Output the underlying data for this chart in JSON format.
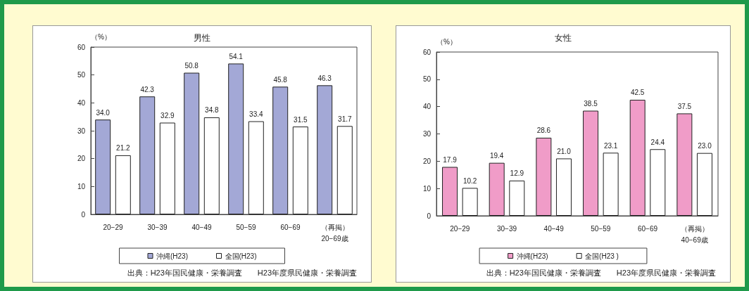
{
  "chart_data": [
    {
      "type": "bar",
      "title": "男性",
      "ylabel": "（%）",
      "categories": [
        "20−29",
        "30−39",
        "40−49",
        "50−59",
        "60−69",
        "（再掲）\n20−69歳"
      ],
      "series": [
        {
          "name": "沖縄(H23)",
          "color": "#a3a8d6",
          "values": [
            34.0,
            42.3,
            50.8,
            54.1,
            45.8,
            46.3
          ],
          "value_labels": [
            "34.0",
            "42.3",
            "50.8",
            "54.1",
            "45.8",
            "46.3"
          ]
        },
        {
          "name": "全国(H23)",
          "color": "#ffffff",
          "values": [
            21.2,
            32.9,
            34.8,
            33.4,
            31.5,
            31.7
          ],
          "value_labels": [
            "21.2",
            "32.9",
            "34.8",
            "33.4",
            "31.5",
            "31.7"
          ]
        }
      ],
      "ylim": [
        0,
        60
      ],
      "yticks": [
        0,
        10,
        20,
        30,
        40,
        50,
        60
      ],
      "grid": false,
      "legend": "bottom",
      "annotations": [
        "出典：H23年国民健康・栄養調査　　H23年度県民健康・栄養調査"
      ]
    },
    {
      "type": "bar",
      "title": "女性",
      "ylabel": "（%）",
      "categories": [
        "20−29",
        "30−39",
        "40−49",
        "50−59",
        "60−69",
        "（再掲）\n40−69歳"
      ],
      "series": [
        {
          "name": "沖縄(H23)",
          "color": "#f09cc8",
          "values": [
            17.9,
            19.4,
            28.6,
            38.5,
            42.5,
            37.5
          ],
          "value_labels": [
            "17.9",
            "19.4",
            "28.6",
            "38.5",
            "42.5",
            "37.5"
          ]
        },
        {
          "name": "全国(H23 )",
          "color": "#ffffff",
          "values": [
            10.2,
            12.9,
            21.0,
            23.1,
            24.4,
            23.0
          ],
          "value_labels": [
            "10.2",
            "12.9",
            "21.0",
            "23.1",
            "24.4",
            "23.0"
          ]
        }
      ],
      "ylim": [
        0,
        60
      ],
      "yticks": [
        0,
        10,
        20,
        30,
        40,
        50,
        60
      ],
      "grid": false,
      "legend": "bottom",
      "annotations": [
        "出典：H23年国民健康・栄養調査　　H23年度県民健康・栄養調査"
      ]
    }
  ]
}
